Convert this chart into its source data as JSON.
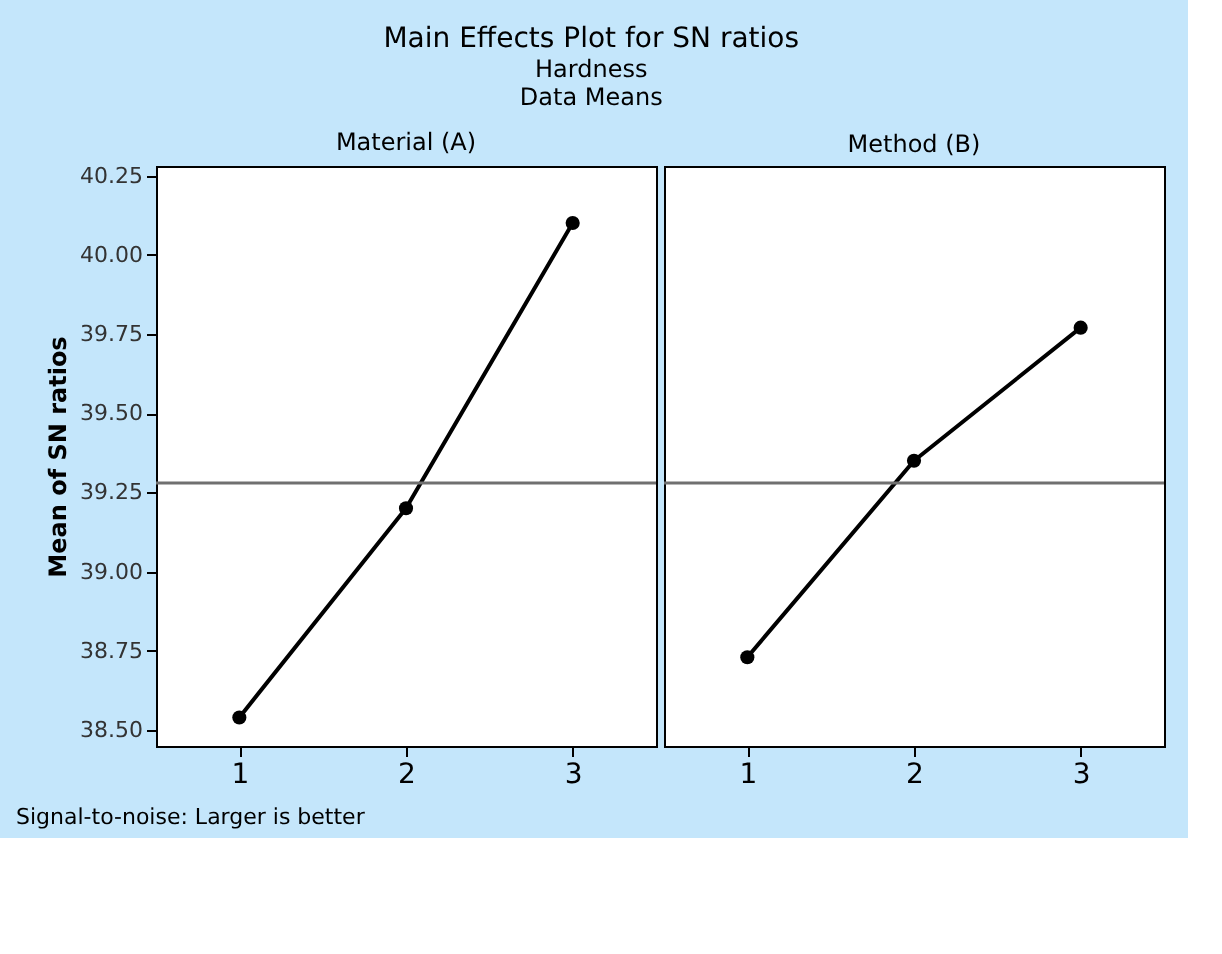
{
  "chart_data": [
    {
      "type": "line",
      "title": "Main Effects Plot for SN ratios",
      "subtitle": "Hardness",
      "annotations": [
        "Data Means",
        "Signal-to-noise: Larger is better"
      ],
      "x2label": "Material (A)",
      "ylabel": "Mean of SN ratios",
      "x": [
        1,
        2,
        3
      ],
      "series": [
        {
          "color": "#000000",
          "values": [
            38.54,
            39.2,
            40.1
          ]
        }
      ],
      "xlim": [
        0.5,
        3.5
      ],
      "xticks": [
        1,
        2,
        3
      ],
      "ylim": [
        38.45,
        40.28
      ],
      "yticks": [
        {
          "value": 38.5,
          "label": "38.50"
        },
        38.75,
        {
          "value": 39.0,
          "label": "39.00"
        },
        39.25,
        {
          "value": 39.5,
          "label": "39.50"
        },
        39.75,
        {
          "value": 40.0,
          "label": "40.00"
        },
        40.25
      ],
      "ref_lines": [
        {
          "axis": "y",
          "value": 39.28,
          "color": "#707070"
        }
      ],
      "grid": false,
      "marker": "circle",
      "line_style": "solid"
    },
    {
      "type": "line",
      "x2label": "Method (B)",
      "x": [
        1,
        2,
        3
      ],
      "series": [
        {
          "color": "#000000",
          "values": [
            38.73,
            39.35,
            39.77
          ]
        }
      ],
      "xlim": [
        0.5,
        3.5
      ],
      "xticks": [
        1,
        2,
        3
      ],
      "ylim": [
        38.45,
        40.28
      ],
      "ref_lines": [
        {
          "axis": "y",
          "value": 39.28,
          "color": "#707070"
        }
      ],
      "tick_labels": "x",
      "grid": false,
      "marker": "circle",
      "line_style": "solid"
    }
  ]
}
